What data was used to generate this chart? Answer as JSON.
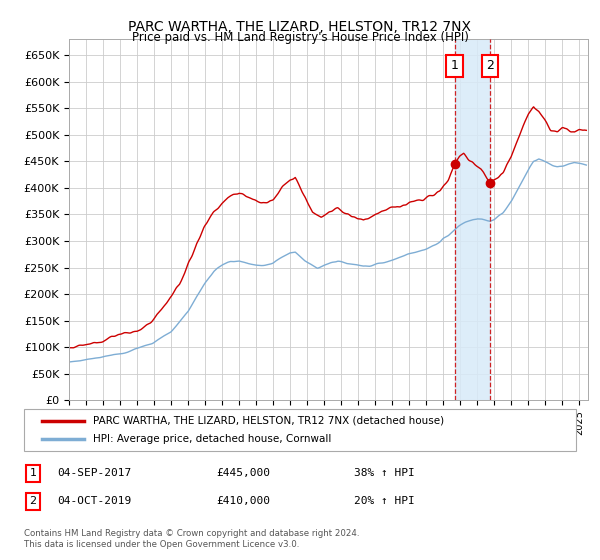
{
  "title": "PARC WARTHA, THE LIZARD, HELSTON, TR12 7NX",
  "subtitle": "Price paid vs. HM Land Registry's House Price Index (HPI)",
  "xlim": [
    1995.0,
    2025.5
  ],
  "ylim": [
    0,
    680000
  ],
  "yticks": [
    0,
    50000,
    100000,
    150000,
    200000,
    250000,
    300000,
    350000,
    400000,
    450000,
    500000,
    550000,
    600000,
    650000
  ],
  "red_line_color": "#cc0000",
  "blue_line_color": "#7eadd4",
  "grid_color": "#cccccc",
  "bg_color": "#ffffff",
  "sale1_date": 2017.67,
  "sale1_price": 445000,
  "sale2_date": 2019.75,
  "sale2_price": 410000,
  "shade_color": "#d8eaf8",
  "legend1": "PARC WARTHA, THE LIZARD, HELSTON, TR12 7NX (detached house)",
  "legend2": "HPI: Average price, detached house, Cornwall",
  "note1_label": "1",
  "note1_date": "04-SEP-2017",
  "note1_price": "£445,000",
  "note1_pct": "38% ↑ HPI",
  "note2_label": "2",
  "note2_date": "04-OCT-2019",
  "note2_price": "£410,000",
  "note2_pct": "20% ↑ HPI",
  "footer": "Contains HM Land Registry data © Crown copyright and database right 2024.\nThis data is licensed under the Open Government Licence v3.0."
}
